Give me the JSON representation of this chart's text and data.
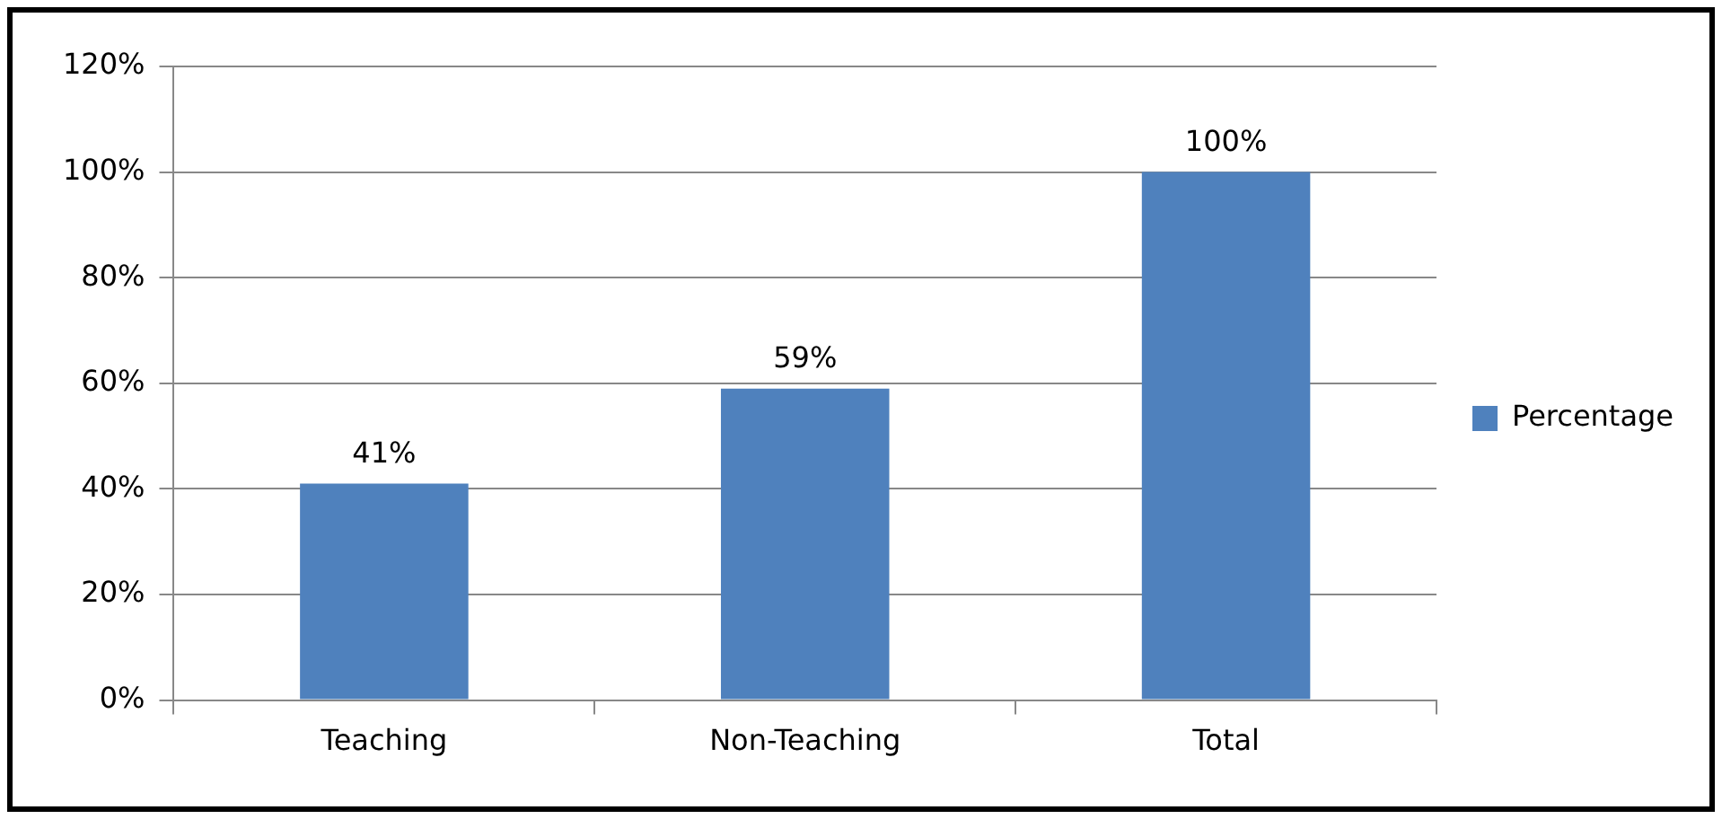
{
  "chart_data": {
    "type": "bar",
    "categories": [
      "Teaching",
      "Non-Teaching",
      "Total"
    ],
    "series": [
      {
        "name": "Percentage",
        "color": "#4f81bd",
        "values": [
          41,
          59,
          100
        ],
        "value_labels": [
          "41%",
          "59%",
          "100%"
        ]
      }
    ],
    "ylim": [
      0,
      120
    ],
    "yticks": [
      {
        "value": 0,
        "label": "0%"
      },
      {
        "value": 20,
        "label": "20%"
      },
      {
        "value": 40,
        "label": "40%"
      },
      {
        "value": 60,
        "label": "60%"
      },
      {
        "value": 80,
        "label": "80%"
      },
      {
        "value": 100,
        "label": "100%"
      },
      {
        "value": 120,
        "label": "120%"
      }
    ],
    "grid": "y",
    "legend": "right"
  }
}
